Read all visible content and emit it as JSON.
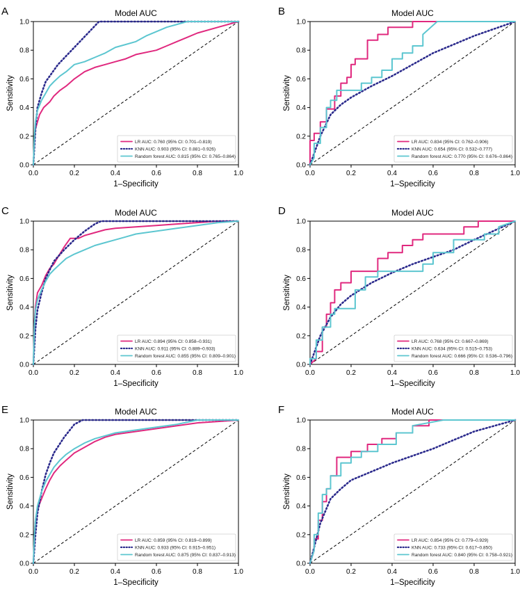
{
  "colors": {
    "lr": "#e0287e",
    "knn": "#2b2a8c",
    "rf": "#5cc6d0",
    "diag": "#000000"
  },
  "chart_data": [
    {
      "panel": "A",
      "type": "line",
      "title": "Model AUC",
      "xlabel": "1–Specificity",
      "ylabel": "Sensitivity",
      "xlim": [
        0,
        1
      ],
      "ylim": [
        0,
        1
      ],
      "xticks": [
        "0.0",
        "0.2",
        "0.4",
        "0.6",
        "0.8",
        "1.0"
      ],
      "yticks": [
        "0.0",
        "0.2",
        "0.4",
        "0.6",
        "0.8",
        "1.0"
      ],
      "legend_position": "bottom-right",
      "series": [
        {
          "key": "lr",
          "name": "LR AUC: 0.760 (95% CI: 0.701–0.819)",
          "x": [
            0,
            0.005,
            0.01,
            0.02,
            0.03,
            0.05,
            0.08,
            0.1,
            0.13,
            0.16,
            0.2,
            0.25,
            0.3,
            0.35,
            0.4,
            0.45,
            0.5,
            0.6,
            0.65,
            0.7,
            0.75,
            0.8,
            0.9,
            1.0
          ],
          "y": [
            0,
            0.18,
            0.25,
            0.3,
            0.35,
            0.4,
            0.44,
            0.48,
            0.52,
            0.55,
            0.6,
            0.65,
            0.68,
            0.7,
            0.72,
            0.74,
            0.77,
            0.8,
            0.83,
            0.86,
            0.89,
            0.92,
            0.96,
            1.0
          ]
        },
        {
          "key": "knn",
          "name": "KNN AUC: 0.903 (95% CI: 0.881–0.926)",
          "x": [
            0,
            0.01,
            0.02,
            0.04,
            0.06,
            0.08,
            0.12,
            0.2,
            0.3,
            0.32,
            0.6,
            1.0
          ],
          "y": [
            0,
            0.25,
            0.4,
            0.5,
            0.58,
            0.62,
            0.7,
            0.82,
            0.97,
            1.0,
            1.0,
            1.0
          ]
        },
        {
          "key": "rf",
          "name": "Random forest AUC: 0.815 (95% CI: 0.765–0.864)",
          "x": [
            0,
            0.005,
            0.01,
            0.02,
            0.04,
            0.06,
            0.08,
            0.1,
            0.13,
            0.16,
            0.2,
            0.25,
            0.3,
            0.35,
            0.4,
            0.45,
            0.5,
            0.55,
            0.6,
            0.65,
            0.7,
            0.75,
            0.8,
            1.0
          ],
          "y": [
            0,
            0.2,
            0.3,
            0.38,
            0.45,
            0.5,
            0.55,
            0.58,
            0.62,
            0.65,
            0.7,
            0.72,
            0.75,
            0.78,
            0.82,
            0.84,
            0.86,
            0.9,
            0.93,
            0.96,
            0.98,
            1.0,
            1.0,
            1.0
          ]
        }
      ]
    },
    {
      "panel": "B",
      "type": "line",
      "title": "Model AUC",
      "xlabel": "1–Specificity",
      "ylabel": "Sensitivity",
      "xlim": [
        0,
        1
      ],
      "ylim": [
        0,
        1
      ],
      "xticks": [
        "0.0",
        "0.2",
        "0.4",
        "0.6",
        "0.8",
        "1.0"
      ],
      "yticks": [
        "0.0",
        "0.2",
        "0.4",
        "0.6",
        "0.8",
        "1.0"
      ],
      "legend_position": "bottom-right",
      "series": [
        {
          "key": "lr",
          "name": "LR AUC: 0.834 (95% CI: 0.762–0.906)",
          "x": [
            0,
            0,
            0.02,
            0.02,
            0.05,
            0.05,
            0.08,
            0.08,
            0.12,
            0.12,
            0.15,
            0.15,
            0.18,
            0.18,
            0.2,
            0.2,
            0.22,
            0.22,
            0.28,
            0.28,
            0.33,
            0.33,
            0.38,
            0.38,
            0.45,
            0.45,
            0.5,
            0.5,
            1.0
          ],
          "y": [
            0,
            0.17,
            0.17,
            0.22,
            0.22,
            0.3,
            0.3,
            0.39,
            0.39,
            0.48,
            0.48,
            0.57,
            0.57,
            0.61,
            0.61,
            0.7,
            0.7,
            0.74,
            0.74,
            0.87,
            0.87,
            0.91,
            0.91,
            0.96,
            0.96,
            0.96,
            0.96,
            1.0,
            1.0
          ]
        },
        {
          "key": "knn",
          "name": "KNN AUC: 0.654 (95% CI: 0.532–0.777)",
          "x": [
            0,
            0.05,
            0.1,
            0.15,
            0.2,
            0.3,
            0.4,
            0.5,
            0.6,
            0.8,
            1.0
          ],
          "y": [
            0,
            0.2,
            0.35,
            0.42,
            0.47,
            0.55,
            0.62,
            0.7,
            0.78,
            0.9,
            1.0
          ]
        },
        {
          "key": "rf",
          "name": "Random forest AUC: 0.770 (95% CI: 0.676–0.864)",
          "x": [
            0,
            0.02,
            0.02,
            0.05,
            0.05,
            0.08,
            0.08,
            0.1,
            0.1,
            0.13,
            0.13,
            0.25,
            0.25,
            0.3,
            0.3,
            0.35,
            0.35,
            0.4,
            0.4,
            0.45,
            0.45,
            0.5,
            0.5,
            0.55,
            0.55,
            0.62,
            1.0
          ],
          "y": [
            0,
            0.05,
            0.15,
            0.15,
            0.26,
            0.26,
            0.4,
            0.4,
            0.45,
            0.45,
            0.52,
            0.52,
            0.57,
            0.57,
            0.61,
            0.61,
            0.66,
            0.66,
            0.74,
            0.74,
            0.78,
            0.78,
            0.83,
            0.83,
            0.91,
            1.0,
            1.0
          ]
        }
      ]
    },
    {
      "panel": "C",
      "type": "line",
      "title": "Model AUC",
      "xlabel": "1–Specificity",
      "ylabel": "Sensitivity",
      "xlim": [
        0,
        1
      ],
      "ylim": [
        0,
        1
      ],
      "xticks": [
        "0.0",
        "0.2",
        "0.4",
        "0.6",
        "0.8",
        "1.0"
      ],
      "yticks": [
        "0.0",
        "0.2",
        "0.4",
        "0.6",
        "0.8",
        "1.0"
      ],
      "legend_position": "bottom-right",
      "series": [
        {
          "key": "lr",
          "name": "LR AUC: 0.894 (95% CI: 0.858–0.931)",
          "x": [
            0,
            0.005,
            0.01,
            0.02,
            0.04,
            0.06,
            0.08,
            0.1,
            0.12,
            0.15,
            0.18,
            0.22,
            0.25,
            0.3,
            0.35,
            0.4,
            0.5,
            0.6,
            0.7,
            0.8,
            0.9,
            1.0
          ],
          "y": [
            0,
            0.3,
            0.4,
            0.5,
            0.55,
            0.62,
            0.67,
            0.7,
            0.75,
            0.82,
            0.88,
            0.88,
            0.9,
            0.92,
            0.94,
            0.95,
            0.96,
            0.97,
            0.98,
            0.99,
            1.0,
            1.0
          ]
        },
        {
          "key": "knn",
          "name": "KNN AUC: 0.911 (95% CI: 0.889–0.933)",
          "x": [
            0,
            0.01,
            0.02,
            0.04,
            0.06,
            0.08,
            0.1,
            0.15,
            0.2,
            0.25,
            0.3,
            0.33,
            0.6,
            1.0
          ],
          "y": [
            0,
            0.25,
            0.38,
            0.5,
            0.6,
            0.66,
            0.72,
            0.8,
            0.87,
            0.93,
            0.98,
            1.0,
            1.0,
            1.0
          ]
        },
        {
          "key": "rf",
          "name": "Random forest AUC: 0.855 (95% CI: 0.809–0.901)",
          "x": [
            0,
            0.005,
            0.01,
            0.02,
            0.04,
            0.06,
            0.08,
            0.1,
            0.13,
            0.16,
            0.2,
            0.25,
            0.3,
            0.35,
            0.4,
            0.45,
            0.5,
            0.6,
            0.7,
            0.8,
            0.9,
            1.0
          ],
          "y": [
            0,
            0.28,
            0.38,
            0.45,
            0.52,
            0.58,
            0.63,
            0.66,
            0.7,
            0.74,
            0.77,
            0.8,
            0.83,
            0.85,
            0.87,
            0.89,
            0.91,
            0.93,
            0.95,
            0.97,
            0.99,
            1.0
          ]
        }
      ]
    },
    {
      "panel": "D",
      "type": "line",
      "title": "Model AUC",
      "xlabel": "1–Specificity",
      "ylabel": "Sensitivity",
      "xlim": [
        0,
        1
      ],
      "ylim": [
        0,
        1
      ],
      "xticks": [
        "0.0",
        "0.2",
        "0.4",
        "0.6",
        "0.8",
        "1.0"
      ],
      "yticks": [
        "0.0",
        "0.2",
        "0.4",
        "0.6",
        "0.8",
        "1.0"
      ],
      "legend_position": "bottom-right",
      "series": [
        {
          "key": "lr",
          "name": "LR AUC: 0.768 (95% CI: 0.667–0.869)",
          "x": [
            0,
            0.03,
            0.03,
            0.06,
            0.06,
            0.08,
            0.08,
            0.1,
            0.1,
            0.12,
            0.12,
            0.15,
            0.15,
            0.2,
            0.2,
            0.33,
            0.33,
            0.38,
            0.38,
            0.45,
            0.45,
            0.5,
            0.5,
            0.55,
            0.55,
            0.75,
            0.75,
            0.82,
            0.82,
            1.0
          ],
          "y": [
            0,
            0.04,
            0.09,
            0.09,
            0.26,
            0.26,
            0.35,
            0.35,
            0.43,
            0.43,
            0.52,
            0.52,
            0.57,
            0.57,
            0.65,
            0.65,
            0.74,
            0.74,
            0.78,
            0.78,
            0.83,
            0.83,
            0.87,
            0.87,
            0.91,
            0.91,
            0.96,
            0.96,
            1.0,
            1.0
          ]
        },
        {
          "key": "knn",
          "name": "KNN AUC: 0.634 (95% CI: 0.515–0.753)",
          "x": [
            0,
            0.05,
            0.1,
            0.15,
            0.2,
            0.3,
            0.4,
            0.5,
            0.6,
            0.7,
            0.8,
            1.0
          ],
          "y": [
            0,
            0.2,
            0.33,
            0.42,
            0.48,
            0.57,
            0.64,
            0.7,
            0.75,
            0.8,
            0.87,
            1.0
          ]
        },
        {
          "key": "rf",
          "name": "Random forest AUC: 0.666 (95% CI: 0.536–0.796)",
          "x": [
            0,
            0,
            0.03,
            0.03,
            0.06,
            0.06,
            0.1,
            0.1,
            0.12,
            0.12,
            0.22,
            0.22,
            0.27,
            0.27,
            0.33,
            0.33,
            0.55,
            0.55,
            0.6,
            0.6,
            0.7,
            0.7,
            0.85,
            0.85,
            0.92,
            0.92,
            1.0
          ],
          "y": [
            0,
            0.04,
            0.04,
            0.17,
            0.17,
            0.26,
            0.26,
            0.35,
            0.35,
            0.39,
            0.39,
            0.52,
            0.52,
            0.61,
            0.61,
            0.65,
            0.65,
            0.7,
            0.7,
            0.78,
            0.78,
            0.87,
            0.87,
            0.91,
            0.91,
            0.96,
            1.0
          ]
        }
      ]
    },
    {
      "panel": "E",
      "type": "line",
      "title": "Model AUC",
      "xlabel": "1–Specificity",
      "ylabel": "Sensitivity",
      "xlim": [
        0,
        1
      ],
      "ylim": [
        0,
        1
      ],
      "xticks": [
        "0.0",
        "0.2",
        "0.4",
        "0.6",
        "0.8",
        "1.0"
      ],
      "yticks": [
        "0.0",
        "0.2",
        "0.4",
        "0.6",
        "0.8",
        "1.0"
      ],
      "legend_position": "bottom-right",
      "series": [
        {
          "key": "lr",
          "name": "LR AUC: 0.859 (95% CI: 0.819–0.899)",
          "x": [
            0,
            0.005,
            0.01,
            0.02,
            0.04,
            0.06,
            0.08,
            0.1,
            0.13,
            0.16,
            0.2,
            0.25,
            0.3,
            0.35,
            0.4,
            0.5,
            0.6,
            0.7,
            0.8,
            0.9,
            1.0
          ],
          "y": [
            0,
            0.2,
            0.3,
            0.38,
            0.45,
            0.52,
            0.58,
            0.63,
            0.68,
            0.72,
            0.77,
            0.81,
            0.85,
            0.88,
            0.9,
            0.92,
            0.94,
            0.96,
            0.98,
            0.99,
            1.0
          ]
        },
        {
          "key": "knn",
          "name": "KNN AUC: 0.933 (95% CI: 0.915–0.951)",
          "x": [
            0,
            0.01,
            0.02,
            0.04,
            0.06,
            0.08,
            0.1,
            0.15,
            0.2,
            0.24,
            0.5,
            1.0
          ],
          "y": [
            0,
            0.2,
            0.35,
            0.5,
            0.62,
            0.7,
            0.77,
            0.88,
            0.97,
            1.0,
            1.0,
            1.0
          ]
        },
        {
          "key": "rf",
          "name": "Random forest AUC: 0.875 (95% CI: 0.837–0.913)",
          "x": [
            0,
            0.005,
            0.01,
            0.02,
            0.04,
            0.06,
            0.08,
            0.1,
            0.13,
            0.16,
            0.2,
            0.25,
            0.3,
            0.35,
            0.4,
            0.5,
            0.6,
            0.7,
            0.8,
            1.0
          ],
          "y": [
            0,
            0.2,
            0.3,
            0.4,
            0.5,
            0.57,
            0.62,
            0.67,
            0.72,
            0.76,
            0.8,
            0.84,
            0.87,
            0.89,
            0.91,
            0.93,
            0.95,
            0.97,
            1.0,
            1.0
          ]
        }
      ]
    },
    {
      "panel": "F",
      "type": "line",
      "title": "Model AUC",
      "xlabel": "1–Specificity",
      "ylabel": "Sensitivity",
      "xlim": [
        0,
        1
      ],
      "ylim": [
        0,
        1
      ],
      "xticks": [
        "0.0",
        "0.2",
        "0.4",
        "0.6",
        "0.8",
        "1.0"
      ],
      "yticks": [
        "0.0",
        "0.2",
        "0.4",
        "0.6",
        "0.8",
        "1.0"
      ],
      "legend_position": "bottom-right",
      "series": [
        {
          "key": "lr",
          "name": "LR AUC: 0.854 (95% CI: 0.779–0.929)",
          "x": [
            0,
            0.02,
            0.02,
            0.04,
            0.04,
            0.06,
            0.06,
            0.08,
            0.08,
            0.1,
            0.1,
            0.13,
            0.13,
            0.2,
            0.2,
            0.28,
            0.28,
            0.35,
            0.35,
            0.42,
            0.42,
            0.5,
            0.5,
            0.58,
            0.58,
            1.0
          ],
          "y": [
            0,
            0.09,
            0.17,
            0.17,
            0.3,
            0.3,
            0.43,
            0.43,
            0.52,
            0.52,
            0.61,
            0.61,
            0.74,
            0.74,
            0.78,
            0.78,
            0.83,
            0.83,
            0.87,
            0.87,
            0.91,
            0.91,
            0.96,
            0.96,
            1.0,
            1.0
          ]
        },
        {
          "key": "knn",
          "name": "KNN AUC: 0.733 (95% CI: 0.617–0.850)",
          "x": [
            0,
            0.05,
            0.1,
            0.15,
            0.2,
            0.3,
            0.4,
            0.5,
            0.6,
            0.7,
            0.8,
            1.0
          ],
          "y": [
            0,
            0.28,
            0.45,
            0.52,
            0.58,
            0.64,
            0.7,
            0.75,
            0.8,
            0.86,
            0.92,
            1.0
          ]
        },
        {
          "key": "rf",
          "name": "Random forest AUC: 0.840 (95% CI: 0.758–0.921)",
          "x": [
            0,
            0.02,
            0.02,
            0.04,
            0.04,
            0.06,
            0.06,
            0.08,
            0.08,
            0.1,
            0.1,
            0.15,
            0.15,
            0.2,
            0.2,
            0.25,
            0.25,
            0.33,
            0.33,
            0.42,
            0.42,
            0.5,
            0.5,
            0.65,
            1.0
          ],
          "y": [
            0,
            0.09,
            0.2,
            0.2,
            0.35,
            0.35,
            0.48,
            0.48,
            0.52,
            0.52,
            0.61,
            0.61,
            0.7,
            0.7,
            0.74,
            0.74,
            0.78,
            0.78,
            0.83,
            0.83,
            0.91,
            0.91,
            0.96,
            1.0,
            1.0
          ]
        }
      ]
    }
  ]
}
